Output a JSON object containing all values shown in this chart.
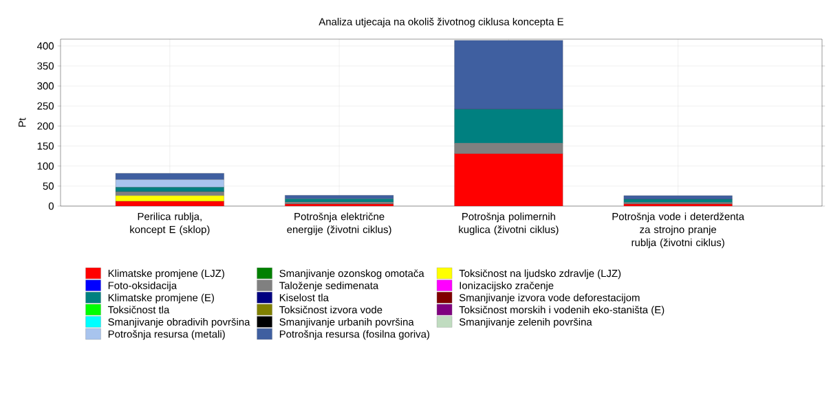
{
  "chart_data": {
    "type": "bar",
    "stacked": true,
    "title": "Analiza utjecaja na okoliš životnog ciklusa koncepta E",
    "ylabel": "Pt",
    "categories": [
      "Perilica rublja, koncept E (sklop)",
      "Potrošnja električne energije (životni ciklus)",
      "Potrošnja polimernih kuglica (životni ciklus)",
      "Potrošnja vode i deterdženta za strojno pranje rublja (životni ciklus)"
    ],
    "ylim": [
      0,
      417
    ],
    "yticks": [
      0,
      50,
      100,
      150,
      200,
      250,
      300,
      350,
      400
    ],
    "grid": true,
    "legend": "bottom",
    "series": [
      {
        "name": "Klimatske promjene (LJZ)",
        "color": "#ff0000",
        "values": [
          12,
          5,
          131,
          5
        ]
      },
      {
        "name": "Smanjivanje ozonskog omotača",
        "color": "#008000",
        "values": [
          0,
          0,
          0,
          0
        ]
      },
      {
        "name": "Toksičnost na ljudsko zdravlje (LJZ)",
        "color": "#ffff00",
        "values": [
          14,
          0,
          0,
          0
        ]
      },
      {
        "name": "Foto-oksidacija",
        "color": "#0000ff",
        "values": [
          0,
          0,
          0,
          0
        ]
      },
      {
        "name": "Taloženje sedimenata",
        "color": "#808080",
        "values": [
          10,
          5,
          26,
          4
        ]
      },
      {
        "name": "Ionizacijsko zračenje",
        "color": "#ff00ff",
        "values": [
          0,
          0,
          0,
          0
        ]
      },
      {
        "name": "Klimatske promjene (E)",
        "color": "#008080",
        "values": [
          11,
          8,
          85,
          8
        ]
      },
      {
        "name": "Kiselost tla",
        "color": "#000080",
        "values": [
          0,
          0,
          0,
          0
        ]
      },
      {
        "name": "Smanjivanje izvora vode deforestacijom",
        "color": "#800000",
        "values": [
          0,
          0,
          0,
          0
        ]
      },
      {
        "name": "Toksičnost tla",
        "color": "#00ff00",
        "values": [
          0,
          0,
          0,
          0
        ]
      },
      {
        "name": "Toksičnost izvora vode",
        "color": "#808000",
        "values": [
          0,
          0,
          0,
          0
        ]
      },
      {
        "name": "Toksičnost morskih i vodenih eko-staništa (E)",
        "color": "#800080",
        "values": [
          0,
          0,
          0,
          0
        ]
      },
      {
        "name": "Smanjivanje obradivih površina",
        "color": "#00ffff",
        "values": [
          0,
          0,
          0,
          0
        ]
      },
      {
        "name": "Smanjivanje urbanih površina",
        "color": "#000000",
        "values": [
          0,
          0,
          0,
          0
        ]
      },
      {
        "name": "Smanjivanje zelenih površina",
        "color": "#c0dcc0",
        "values": [
          0,
          0,
          0,
          0
        ]
      },
      {
        "name": "Potrošnja resursa (metali)",
        "color": "#a8c4ee",
        "values": [
          19,
          0,
          0,
          0
        ]
      },
      {
        "name": "Potrošnja resursa (fosilna goriva)",
        "color": "#3f5fa0",
        "values": [
          16,
          9,
          172,
          9
        ]
      }
    ]
  }
}
